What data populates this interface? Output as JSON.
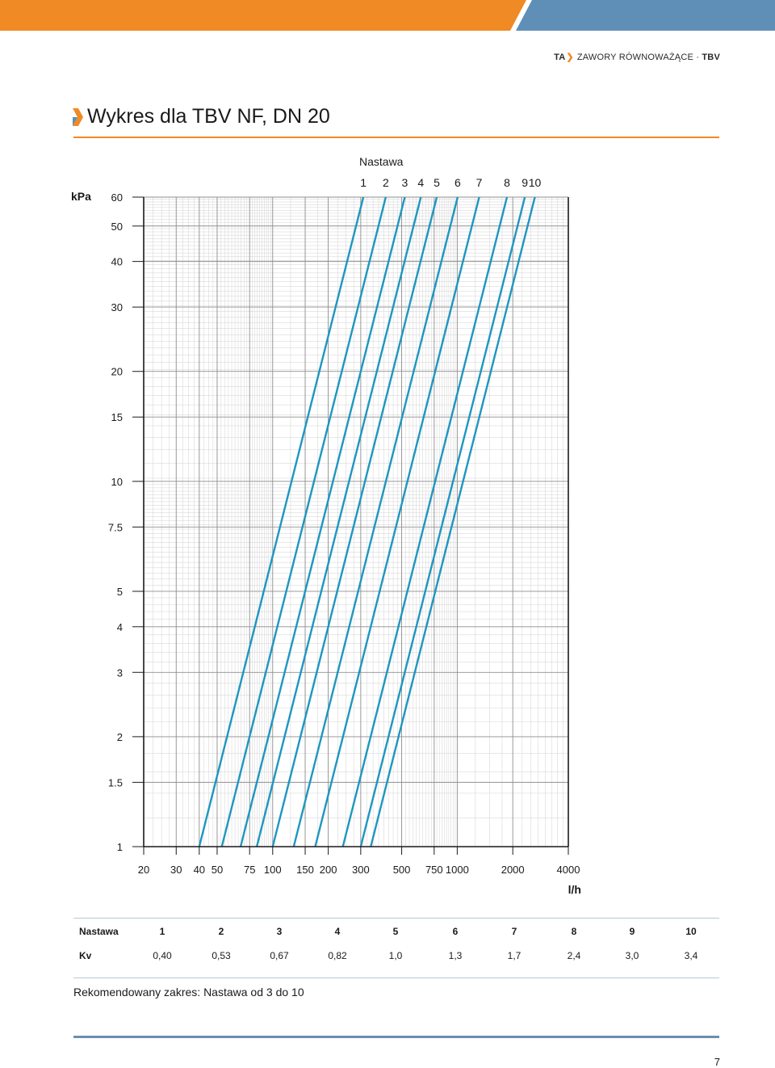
{
  "header": {
    "brand_ta": "TA",
    "brand_chevron": "❯",
    "brand_text": "ZAWORY RÓWNOWAŻĄCE · ",
    "brand_product": "TBV",
    "colors": {
      "orange": "#f08a24",
      "blue": "#5f8fb6"
    }
  },
  "title": "Wykres dla TBV NF, DN 20",
  "chart_data": {
    "type": "line",
    "y_unit": "kPa",
    "x_unit": "l/h",
    "series_header": "Nastawa",
    "x_scale": "log",
    "y_scale": "log",
    "xlim": [
      20,
      4000
    ],
    "ylim": [
      1,
      60
    ],
    "x_ticks": [
      20,
      30,
      40,
      50,
      75,
      100,
      150,
      200,
      300,
      500,
      750,
      1000,
      2000,
      4000
    ],
    "y_ticks": [
      60,
      50,
      40,
      30,
      20,
      15,
      10,
      7.5,
      5,
      4,
      3,
      2,
      1.5,
      1
    ],
    "y_tick_labels": [
      "60",
      "50",
      "40",
      "30",
      "20",
      "15",
      "10",
      "7.5",
      "5",
      "4",
      "3",
      "2",
      "1.5",
      "1"
    ],
    "grid": true,
    "line_color": "#1e96c0",
    "series": [
      {
        "name": "1",
        "kv": 0.4,
        "x_at_1kPa": 40,
        "x_at_60kPa": 310
      },
      {
        "name": "2",
        "kv": 0.53,
        "x_at_1kPa": 53,
        "x_at_60kPa": 410
      },
      {
        "name": "3",
        "kv": 0.67,
        "x_at_1kPa": 67,
        "x_at_60kPa": 520
      },
      {
        "name": "4",
        "kv": 0.82,
        "x_at_1kPa": 82,
        "x_at_60kPa": 635
      },
      {
        "name": "5",
        "kv": 1.0,
        "x_at_1kPa": 100,
        "x_at_60kPa": 775
      },
      {
        "name": "6",
        "kv": 1.3,
        "x_at_1kPa": 130,
        "x_at_60kPa": 1005
      },
      {
        "name": "7",
        "kv": 1.7,
        "x_at_1kPa": 170,
        "x_at_60kPa": 1315
      },
      {
        "name": "8",
        "kv": 2.4,
        "x_at_1kPa": 240,
        "x_at_60kPa": 1860
      },
      {
        "name": "9",
        "kv": 3.0,
        "x_at_1kPa": 300,
        "x_at_60kPa": 2325
      },
      {
        "name": "10",
        "kv": 3.4,
        "x_at_1kPa": 340,
        "x_at_60kPa": 2635
      }
    ]
  },
  "table": {
    "row1_label": "Nastawa",
    "row2_label": "Kv",
    "settings": [
      "1",
      "2",
      "3",
      "4",
      "5",
      "6",
      "7",
      "8",
      "9",
      "10"
    ],
    "kv": [
      "0,40",
      "0,53",
      "0,67",
      "0,82",
      "1,0",
      "1,3",
      "1,7",
      "2,4",
      "3,0",
      "3,4"
    ]
  },
  "recommended": "Rekomendowany zakres: Nastawa od 3 do 10",
  "page_number": "7"
}
